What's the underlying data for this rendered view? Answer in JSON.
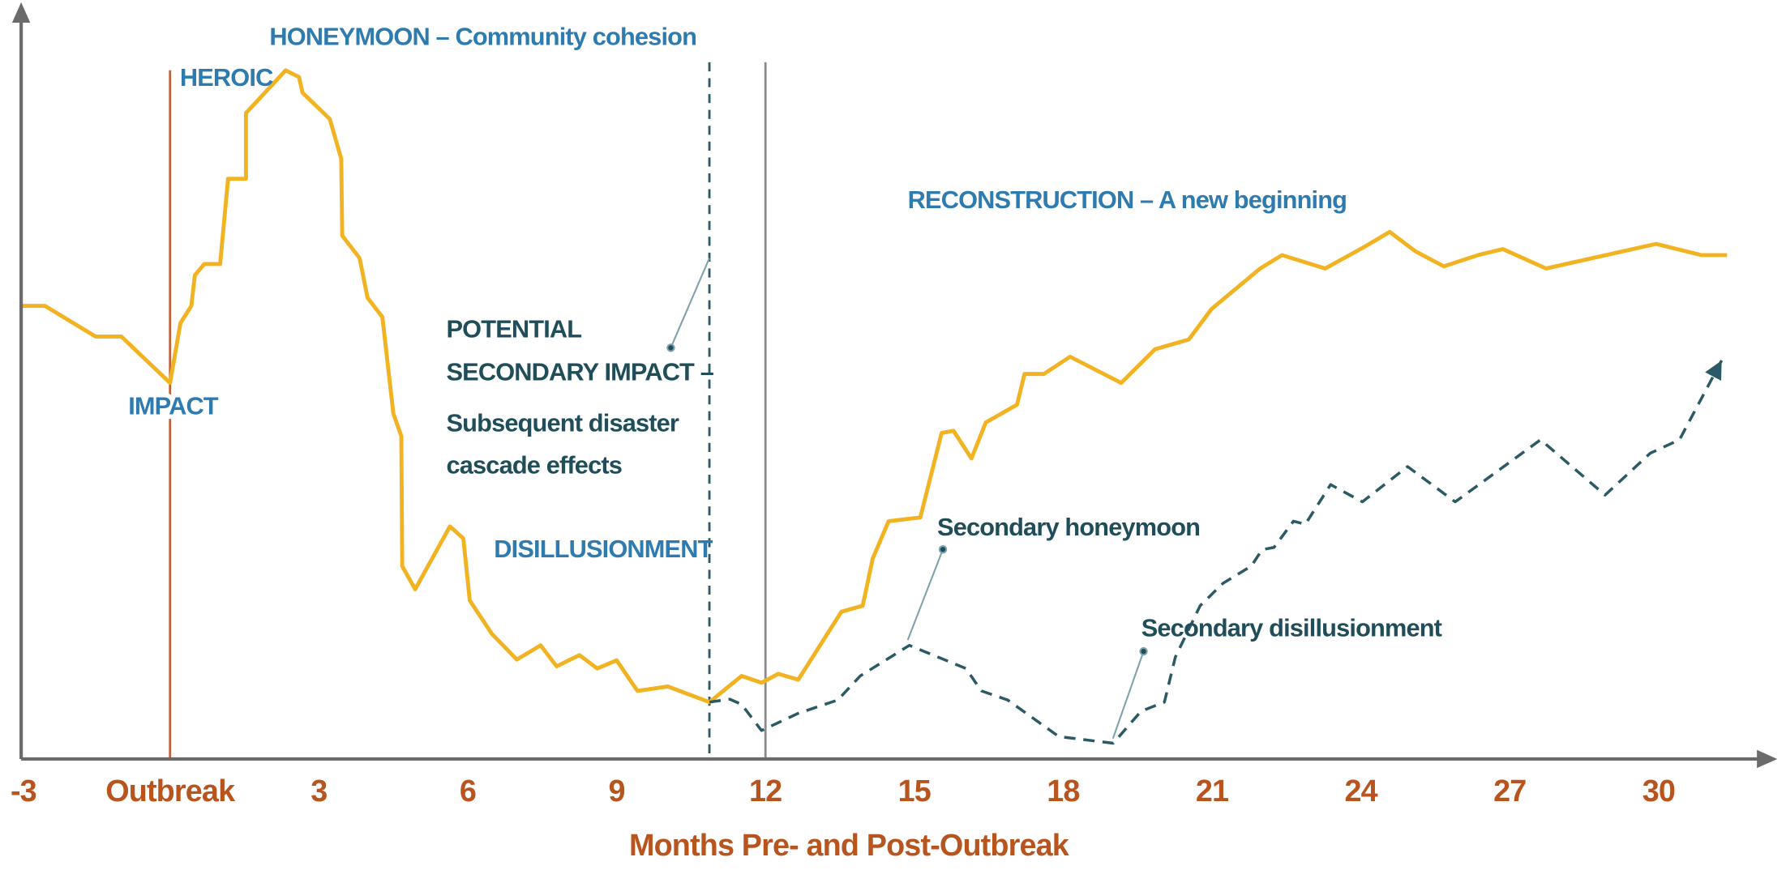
{
  "chart_data": {
    "type": "line",
    "xlabel": "Months Pre- and Post-Outbreak",
    "xlim": [
      -3,
      32.3
    ],
    "ylim": [
      0,
      100
    ],
    "xticks": [
      -3,
      {
        "value": 0,
        "label": "Outbreak"
      },
      3,
      6,
      9,
      12,
      15,
      18,
      21,
      24,
      27,
      30
    ],
    "series": [
      {
        "color": "#f2b322",
        "dashed": false,
        "arrow": false,
        "x": [
          -3,
          -2.52,
          -1.5,
          -0.98,
          0,
          0.21,
          0.43,
          0.5,
          0.69,
          1.01,
          1.17,
          1.53,
          1.53,
          2.33,
          2.6,
          2.67,
          3.22,
          3.45,
          3.47,
          3.82,
          3.98,
          4.28,
          4.5,
          4.66,
          4.68,
          4.94,
          5.64,
          5.91,
          6.04,
          6.49,
          6.99,
          7.47,
          7.79,
          8.25,
          8.61,
          9.0,
          9.42,
          10.03,
          10.87,
          11.52,
          11.92,
          12.26,
          12.66,
          13.53,
          13.96,
          14.16,
          14.48,
          15.12,
          15.55,
          15.79,
          16.15,
          16.44,
          17.07,
          17.22,
          17.61,
          18.14,
          19.17,
          19.85,
          20.53,
          20.99,
          21.97,
          22.41,
          23.28,
          24.07,
          24.58,
          25.1,
          25.67,
          26.36,
          26.86,
          27.73,
          29.95,
          30.86,
          31.38
        ],
        "values": [
          60.6,
          60.6,
          56.5,
          56.5,
          50.3,
          58.3,
          60.6,
          64.7,
          66.2,
          66.2,
          77.6,
          77.6,
          86.4,
          92.1,
          91.2,
          89.1,
          85.6,
          80.3,
          70,
          67,
          61.7,
          59.1,
          46.2,
          43.2,
          25.8,
          22.7,
          31.1,
          29.5,
          21.2,
          16.7,
          13.3,
          15.2,
          12.4,
          13.9,
          12.1,
          13.2,
          9.1,
          9.7,
          7.6,
          11.1,
          10.2,
          11.4,
          10.6,
          19.7,
          20.5,
          26.8,
          31.8,
          32.3,
          43.6,
          43.9,
          40.2,
          45,
          47.4,
          51.5,
          51.5,
          53.8,
          50.3,
          54.8,
          56.1,
          60.2,
          65.6,
          67.4,
          65.6,
          68.5,
          70.5,
          67.9,
          65.9,
          67.4,
          68.2,
          65.6,
          68.9,
          67.4,
          67.4
        ]
      },
      {
        "color": "#2b5a66",
        "dashed": true,
        "arrow": true,
        "x": [
          10.87,
          11.28,
          11.52,
          11.92,
          12.66,
          13.46,
          13.91,
          14.9,
          16.04,
          16.35,
          16.88,
          17.91,
          19.01,
          19.57,
          20.04,
          20.26,
          20.76,
          21.22,
          21.79,
          22.01,
          22.25,
          22.64,
          22.88,
          23.39,
          24.03,
          24.94,
          25.9,
          27.62,
          28.92,
          29.83,
          30.42,
          31.27
        ],
        "values": [
          7.6,
          8,
          7.3,
          3.8,
          6.1,
          7.9,
          11.1,
          15.2,
          12.1,
          9.1,
          7.9,
          3,
          2.1,
          6.4,
          7.6,
          13.6,
          20.5,
          23.5,
          25.8,
          28,
          28.3,
          31.8,
          31.4,
          36.7,
          34.4,
          39.1,
          34.4,
          42.7,
          35.3,
          40.9,
          42.7,
          53.3
        ]
      }
    ],
    "vlines": [
      {
        "x": 0,
        "color": "#c0623a",
        "dashed": false
      },
      {
        "x": 10.87,
        "color": "#2b5a66",
        "dashed": true
      },
      {
        "x": 12,
        "color": "#8a8a8a",
        "dashed": false
      }
    ],
    "annotations": [
      "HONEYMOON – Community cohesion",
      "HEROIC",
      "IMPACT",
      "POTENTIAL",
      "SECONDARY IMPACT –",
      "Subsequent disaster",
      "cascade effects",
      "DISILLUSIONMENT",
      "RECONSTRUCTION – A new beginning",
      "Secondary honeymoon",
      "Secondary disillusionment"
    ]
  }
}
